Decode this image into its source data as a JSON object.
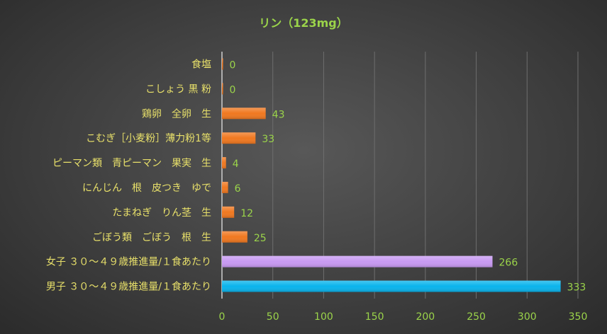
{
  "chart_data": {
    "type": "bar",
    "orientation": "horizontal",
    "title": "リン（123mg）",
    "categories": [
      "食塩",
      "こしょう 黒 粉",
      "鶏卵　全卵　生",
      "こむぎ［小麦粉］薄力粉1等",
      "ピーマン類　青ピーマン　果実　生",
      "にんじん　根　皮つき　ゆで",
      "たまねぎ　りん茎　生",
      "ごぼう類　ごぼう　根　生",
      "女子 ３０～４９歳推進量/１食あたり",
      "男子 ３０～４９歳推進量/１食あたり"
    ],
    "values": [
      0,
      0,
      43,
      33,
      4,
      6,
      12,
      25,
      266,
      333
    ],
    "data_labels": [
      "0",
      "0",
      "43",
      "33",
      "4",
      "6",
      "12",
      "25",
      "266",
      "333"
    ],
    "xlim": [
      0,
      350
    ],
    "x_ticks": [
      "0",
      "50",
      "100",
      "150",
      "200",
      "250",
      "300",
      "350"
    ],
    "grid": true,
    "bar_colors": [
      "#f07820",
      "#f07820",
      "#f07820",
      "#f07820",
      "#f07820",
      "#f07820",
      "#f07820",
      "#f07820",
      "#c89af2",
      "#0ab4ec"
    ]
  }
}
